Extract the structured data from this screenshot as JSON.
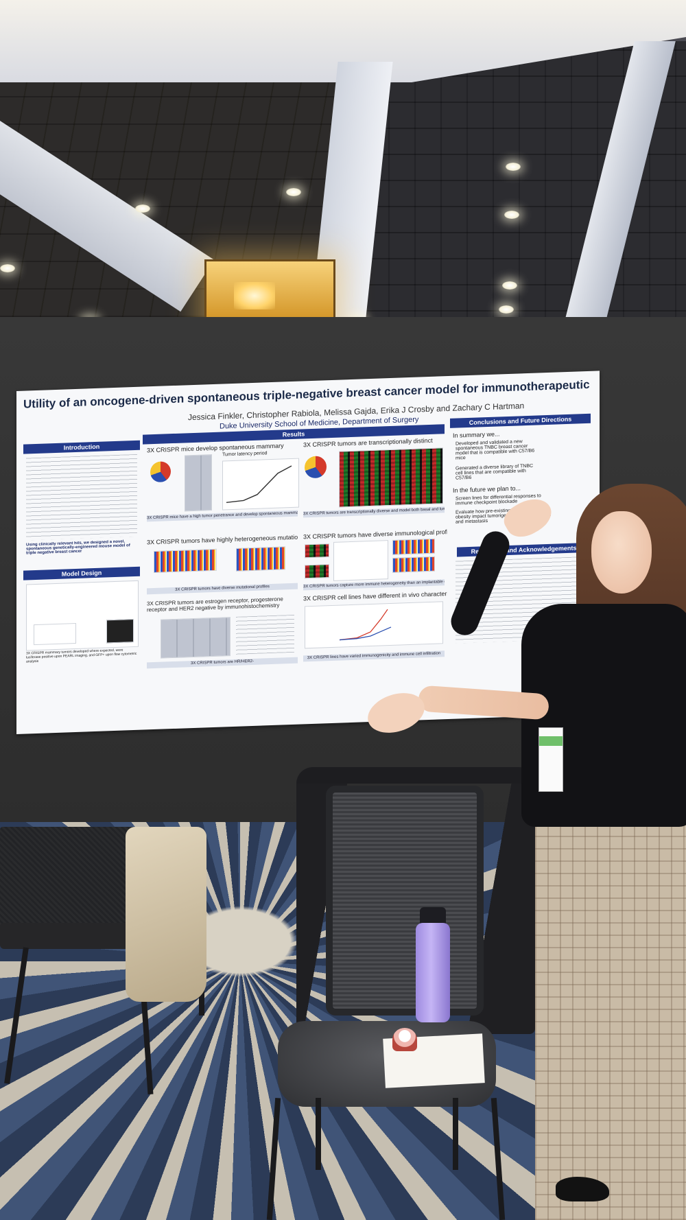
{
  "poster": {
    "title": "Utility of an oncogene-driven spontaneous triple-negative breast cancer model for immunotherapeutic testing",
    "authors": "Jessica Finkler, Christopher Rabiola, Melissa Gajda, Erika J Crosby and Zachary C Hartman",
    "affiliation": "Duke University School of Medicine, Department of Surgery",
    "headers": {
      "introduction": "Introduction",
      "results": "Results",
      "conclusions": "Conclusions and Future Directions",
      "model_design": "Model Design",
      "references": "References and Acknowledgements"
    },
    "subheads": {
      "spontaneous": "3X CRISPR mice develop spontaneous mammary tumors",
      "transcriptional": "3X CRISPR tumors are transcriptionally distinct",
      "mutational": "3X CRISPR tumors have highly heterogeneous mutational profiles",
      "immunological": "3X CRISPR tumors have diverse immunological profiles",
      "receptor": "3X CRISPR tumors are estrogen receptor, progesterone receptor and HER2 negative by immunohistochemistry",
      "invivo": "3X CRISPR cell lines have different in vivo characteristics",
      "latency": "Tumor latency period"
    },
    "captions": {
      "c1": "3X CRISPR mice have a high tumor penetrance and develop spontaneous mammary tumors",
      "c2": "3X CRISPR tumors are transcriptionally diverse and model both basal and luminal breast cancer subtypes",
      "c3": "3X CRISPR tumors have diverse mutational profiles",
      "c4": "3X CRISPR tumors capture more immune heterogeneity than an implantable counterpart",
      "c5": "3X CRISPR tumors are HR/HER2-",
      "c6": "3X CRISPR lines have varied immunogenicity and immune cell infiltration"
    },
    "conclusions": {
      "intro": "In summary we...",
      "bullets": [
        "Developed and validated a new spontaneous TNBC breast cancer model that is compatible with C57/B6 mice",
        "Generated a diverse library of TNBC cell lines that are compatible with C57/B6"
      ],
      "future_intro": "In the future we plan to...",
      "future_bullets": [
        "Screen lines for differential responses to immune checkpoint blockade",
        "Evaluate how pre-existing conditions like obesity impact tumorigenesis, ICB sensitivity, and metastasis"
      ]
    },
    "intro_highlight": "Using clinically relevant hits, we designed a novel, spontaneous genetically-engineered mouse model of triple negative breast cancer",
    "model_caption": "3X CRISPR mammary tumors developed where expected, were luciferase positive upon PEARL imaging, and GFP+ upon flow cytometric analysis"
  },
  "colors": {
    "section_header": "#233a8b",
    "title_text": "#1b2a48",
    "bottle": "#b9a7ef"
  }
}
